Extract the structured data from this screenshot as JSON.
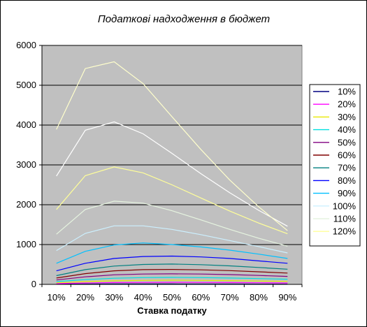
{
  "chart_data": {
    "type": "line",
    "title": "Податкові надходження в бюджет",
    "xlabel": "Ставка податку",
    "ylabel": "",
    "categories": [
      "10%",
      "20%",
      "30%",
      "40%",
      "50%",
      "60%",
      "70%",
      "80%",
      "90%"
    ],
    "ylim": [
      0,
      6000
    ],
    "yticks": [
      0,
      1000,
      2000,
      3000,
      4000,
      5000,
      6000
    ],
    "grid": "horizontal",
    "legend_position": "right",
    "plot_background": "#c0c0c0",
    "series": [
      {
        "name": "10%",
        "color": "#000080",
        "values": [
          5,
          8,
          10,
          10,
          10,
          9,
          8,
          7,
          6
        ]
      },
      {
        "name": "20%",
        "color": "#ff00ff",
        "values": [
          20,
          35,
          45,
          48,
          50,
          48,
          45,
          40,
          35
        ]
      },
      {
        "name": "30%",
        "color": "#e8e800",
        "values": [
          40,
          70,
          90,
          100,
          105,
          100,
          95,
          85,
          75
        ]
      },
      {
        "name": "40%",
        "color": "#00e0e0",
        "values": [
          70,
          120,
          155,
          170,
          175,
          170,
          160,
          145,
          130
        ]
      },
      {
        "name": "50%",
        "color": "#800080",
        "values": [
          110,
          190,
          240,
          260,
          265,
          260,
          245,
          225,
          200
        ]
      },
      {
        "name": "60%",
        "color": "#800000",
        "values": [
          160,
          270,
          340,
          370,
          375,
          365,
          345,
          315,
          285
        ]
      },
      {
        "name": "70%",
        "color": "#008080",
        "values": [
          220,
          370,
          460,
          500,
          510,
          495,
          465,
          425,
          380
        ]
      },
      {
        "name": "80%",
        "color": "#0000ff",
        "values": [
          340,
          530,
          650,
          700,
          710,
          690,
          650,
          590,
          530
        ]
      },
      {
        "name": "90%",
        "color": "#00c0ff",
        "values": [
          530,
          830,
          990,
          1040,
          1000,
          940,
          860,
          760,
          650
        ]
      },
      {
        "name": "100%",
        "color": "#ccf0ff",
        "values": [
          850,
          1280,
          1470,
          1470,
          1380,
          1250,
          1100,
          950,
          790
        ]
      },
      {
        "name": "110%",
        "color": "#e6f4e0",
        "values": [
          1260,
          1880,
          2090,
          2040,
          1850,
          1620,
          1380,
          1160,
          960
        ]
      },
      {
        "name": "120%",
        "color": "#ffff99",
        "values": [
          1880,
          2730,
          2950,
          2800,
          2500,
          2170,
          1840,
          1540,
          1270
        ]
      },
      {
        "name": "",
        "color": "#ffffff",
        "values": [
          2720,
          3870,
          4080,
          3780,
          3290,
          2780,
          2300,
          1860,
          1460
        ]
      },
      {
        "name": "",
        "color": "#ffffcc",
        "values": [
          3890,
          5420,
          5590,
          5040,
          4210,
          3390,
          2620,
          1950,
          1350
        ]
      }
    ]
  }
}
